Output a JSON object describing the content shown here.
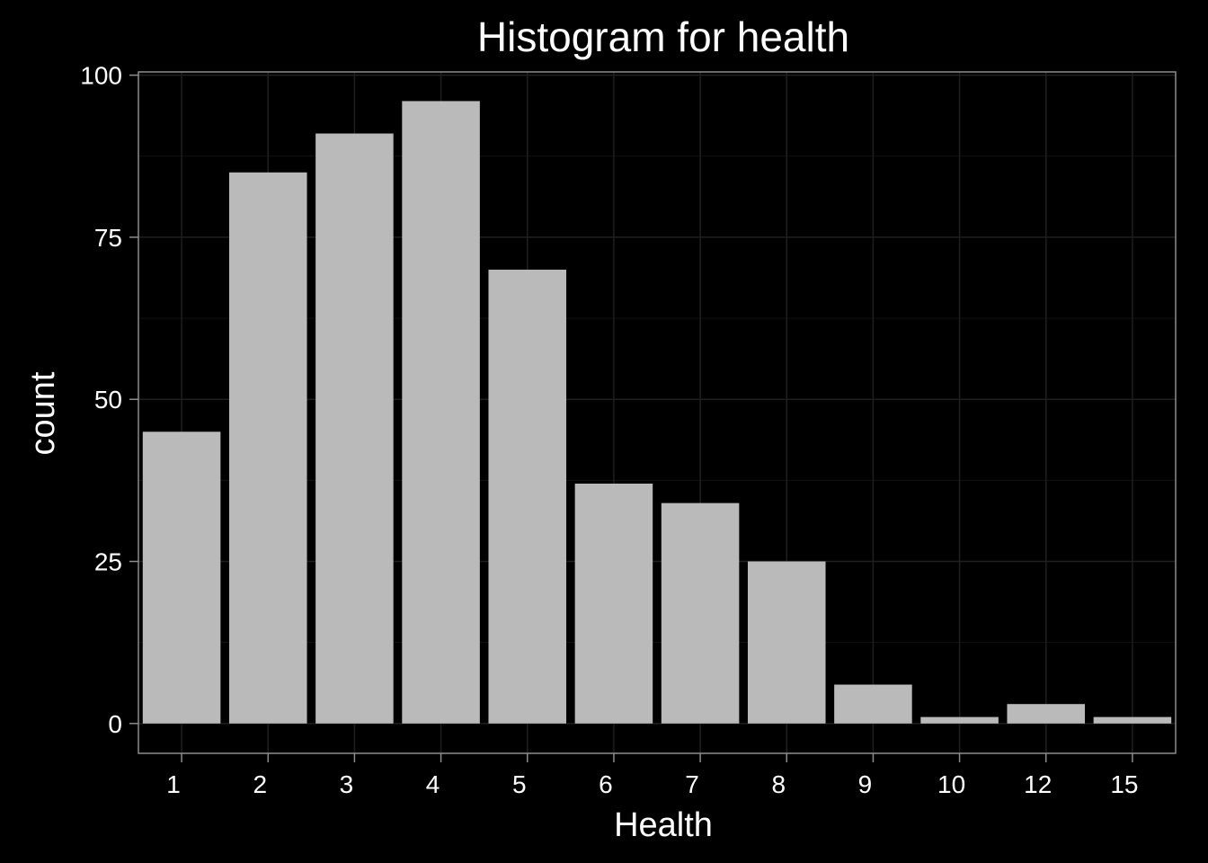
{
  "chart_data": {
    "type": "bar",
    "title": "Histogram for health",
    "xlabel": "Health",
    "ylabel": "count",
    "categories": [
      "1",
      "2",
      "3",
      "4",
      "5",
      "6",
      "7",
      "8",
      "9",
      "10",
      "12",
      "15"
    ],
    "values": [
      45,
      85,
      91,
      96,
      70,
      37,
      34,
      25,
      6,
      1,
      3,
      1
    ],
    "ylim": [
      -4.6,
      100.5
    ],
    "yticks": [
      0,
      25,
      50,
      75,
      100
    ],
    "grid": true,
    "colors": {
      "background": "#000000",
      "panel": "#000000",
      "bar": "#bababa",
      "grid_major": "#1f1f1f",
      "grid_minor": "#121212",
      "border": "#8c8c8c",
      "text": "#ffffff"
    }
  }
}
